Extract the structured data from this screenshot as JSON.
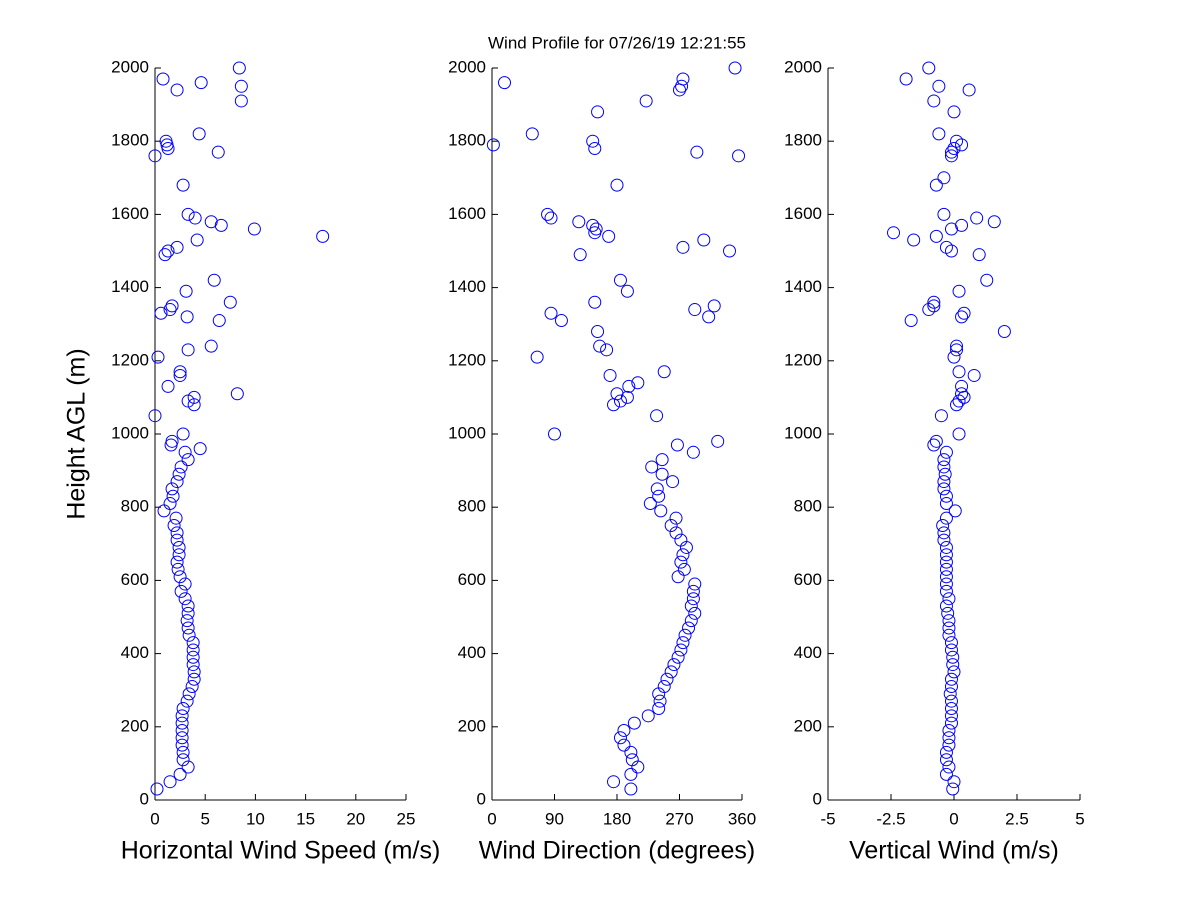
{
  "title": "Wind Profile for  07/26/19 12:21:55",
  "chart_data": [
    {
      "type": "scatter",
      "xlabel": "Horizontal Wind Speed (m/s)",
      "ylabel": "Height AGL (m)",
      "color": "#0000ff",
      "xlim": [
        0,
        25
      ],
      "xticks": [
        0,
        5,
        10,
        15,
        20,
        25
      ],
      "ylim": [
        0,
        2000
      ],
      "yticks": [
        0,
        200,
        400,
        600,
        800,
        1000,
        1200,
        1400,
        1600,
        1800,
        2000
      ],
      "x": [
        0.2,
        1.5,
        2.5,
        3.3,
        2.8,
        2.8,
        2.7,
        2.7,
        2.7,
        2.7,
        2.7,
        2.8,
        3.2,
        3.4,
        3.7,
        3.9,
        3.9,
        3.8,
        3.8,
        3.8,
        3.8,
        3.4,
        3.3,
        3.2,
        3.3,
        3.3,
        3.0,
        2.6,
        3.0,
        2.5,
        2.3,
        2.2,
        2.4,
        2.4,
        2.2,
        2.2,
        1.9,
        2.1,
        0.9,
        1.5,
        1.8,
        1.7,
        2.2,
        2.4,
        2.6,
        3.3,
        3.0,
        1.6,
        2.8,
        1.7,
        4.5,
        0,
        3.9,
        3.3,
        3.9,
        8.2,
        1.3,
        2.5,
        2.5,
        0.3,
        3.3,
        5.6,
        6.4,
        3.2,
        0.6,
        1.5,
        1.7,
        7.5,
        3.1,
        5.9,
        1.0,
        1.3,
        2.2,
        4.2,
        16.7,
        9.9,
        6.6,
        5.6,
        4.0,
        3.3,
        2.8,
        0,
        6.3,
        1.3,
        1.2,
        1.1,
        4.4,
        8.6,
        2.2,
        8.6,
        4.6,
        0.8,
        8.4
      ],
      "values": [
        30,
        50,
        70,
        90,
        110,
        130,
        150,
        170,
        190,
        210,
        230,
        250,
        270,
        290,
        310,
        330,
        350,
        370,
        390,
        410,
        430,
        450,
        470,
        490,
        510,
        530,
        550,
        570,
        590,
        610,
        630,
        650,
        670,
        690,
        710,
        730,
        750,
        770,
        790,
        810,
        830,
        850,
        870,
        890,
        910,
        930,
        950,
        970,
        1000,
        980,
        960,
        1050,
        1080,
        1090,
        1100,
        1110,
        1130,
        1160,
        1170,
        1210,
        1230,
        1240,
        1310,
        1320,
        1330,
        1340,
        1350,
        1360,
        1390,
        1420,
        1490,
        1500,
        1510,
        1530,
        1540,
        1560,
        1570,
        1580,
        1590,
        1600,
        1680,
        1760,
        1770,
        1780,
        1790,
        1800,
        1820,
        1910,
        1940,
        1950,
        1960,
        1970,
        2000
      ]
    },
    {
      "type": "scatter",
      "xlabel": "Wind Direction (degrees)",
      "color": "#0000ff",
      "xlim": [
        0,
        360
      ],
      "xticks": [
        0,
        90,
        180,
        270,
        360
      ],
      "ylim": [
        0,
        2000
      ],
      "yticks": [
        0,
        200,
        400,
        600,
        800,
        1000,
        1200,
        1400,
        1600,
        1800,
        2000
      ],
      "x": [
        200,
        175,
        200,
        210,
        202,
        200,
        190,
        185,
        190,
        205,
        225,
        240,
        242,
        240,
        248,
        252,
        258,
        262,
        268,
        272,
        275,
        278,
        283,
        287,
        292,
        287,
        290,
        290,
        292,
        268,
        277,
        272,
        275,
        280,
        272,
        265,
        258,
        265,
        243,
        228,
        240,
        238,
        260,
        245,
        230,
        245,
        290,
        267,
        325,
        90,
        237,
        175,
        185,
        195,
        180,
        197,
        210,
        170,
        248,
        65,
        165,
        155,
        152,
        100,
        312,
        85,
        292,
        320,
        148,
        195,
        185,
        127,
        342,
        275,
        305,
        168,
        148,
        150,
        145,
        125,
        85,
        80,
        180,
        355,
        295,
        148,
        2,
        145,
        58,
        152,
        222,
        270,
        273,
        18,
        275,
        350
      ],
      "values": [
        30,
        50,
        70,
        90,
        110,
        130,
        150,
        170,
        190,
        210,
        230,
        250,
        270,
        290,
        310,
        330,
        350,
        370,
        390,
        410,
        430,
        450,
        470,
        490,
        510,
        530,
        550,
        570,
        590,
        610,
        630,
        650,
        670,
        690,
        710,
        730,
        750,
        770,
        790,
        810,
        830,
        850,
        870,
        890,
        910,
        930,
        950,
        970,
        980,
        1000,
        1050,
        1080,
        1090,
        1100,
        1110,
        1130,
        1140,
        1160,
        1170,
        1210,
        1230,
        1240,
        1280,
        1310,
        1320,
        1330,
        1340,
        1350,
        1360,
        1390,
        1420,
        1490,
        1500,
        1510,
        1530,
        1540,
        1550,
        1560,
        1570,
        1580,
        1590,
        1600,
        1680,
        1760,
        1770,
        1780,
        1790,
        1800,
        1820,
        1880,
        1910,
        1940,
        1950,
        1960,
        1970,
        2000
      ]
    },
    {
      "type": "scatter",
      "xlabel": "Vertical Wind (m/s)",
      "color": "#0000ff",
      "xlim": [
        -5,
        5
      ],
      "xticks": [
        -5,
        -2.5,
        0,
        2.5,
        5
      ],
      "ylim": [
        0,
        2000
      ],
      "yticks": [
        0,
        200,
        400,
        600,
        800,
        1000,
        1200,
        1400,
        1600,
        1800,
        2000
      ],
      "x": [
        -0.05,
        0.0,
        -0.3,
        -0.2,
        -0.3,
        -0.3,
        -0.2,
        -0.2,
        -0.2,
        -0.1,
        -0.1,
        -0.1,
        -0.1,
        -0.15,
        -0.1,
        -0.1,
        0.0,
        -0.05,
        -0.05,
        -0.1,
        -0.1,
        -0.2,
        -0.2,
        -0.2,
        -0.25,
        -0.3,
        -0.2,
        -0.3,
        -0.3,
        -0.3,
        -0.3,
        -0.3,
        -0.3,
        -0.3,
        -0.4,
        -0.4,
        -0.45,
        -0.3,
        0.05,
        -0.3,
        -0.3,
        -0.4,
        -0.4,
        -0.35,
        -0.4,
        -0.4,
        -0.3,
        -0.8,
        -0.7,
        0.2,
        -0.5,
        0.1,
        0.2,
        0.4,
        0.3,
        0.3,
        0.8,
        0.2,
        0.0,
        0.1,
        0.1,
        2.0,
        -1.7,
        0.3,
        0.4,
        -1.0,
        -0.8,
        -0.8,
        0.2,
        1.3,
        1.0,
        -0.1,
        -0.3,
        -1.6,
        -0.7,
        -2.4,
        -0.1,
        0.3,
        1.6,
        0.9,
        -0.4,
        -0.7,
        -0.4,
        -0.1,
        -0.1,
        0.0,
        0.3,
        0.1,
        -0.6,
        0.0,
        -0.8,
        0.6,
        -0.6,
        -1.9,
        -1.0
      ],
      "values": [
        30,
        50,
        70,
        90,
        110,
        130,
        150,
        170,
        190,
        210,
        230,
        250,
        270,
        290,
        310,
        330,
        350,
        370,
        390,
        410,
        430,
        450,
        470,
        490,
        510,
        530,
        550,
        570,
        590,
        610,
        630,
        650,
        670,
        690,
        710,
        730,
        750,
        770,
        790,
        810,
        830,
        850,
        870,
        890,
        910,
        930,
        950,
        970,
        980,
        1000,
        1050,
        1080,
        1090,
        1100,
        1110,
        1130,
        1160,
        1170,
        1210,
        1230,
        1240,
        1280,
        1310,
        1320,
        1330,
        1340,
        1350,
        1360,
        1390,
        1420,
        1490,
        1500,
        1510,
        1530,
        1540,
        1550,
        1560,
        1570,
        1580,
        1590,
        1600,
        1680,
        1700,
        1760,
        1770,
        1780,
        1790,
        1800,
        1820,
        1880,
        1910,
        1940,
        1950,
        1970,
        2000
      ]
    }
  ]
}
